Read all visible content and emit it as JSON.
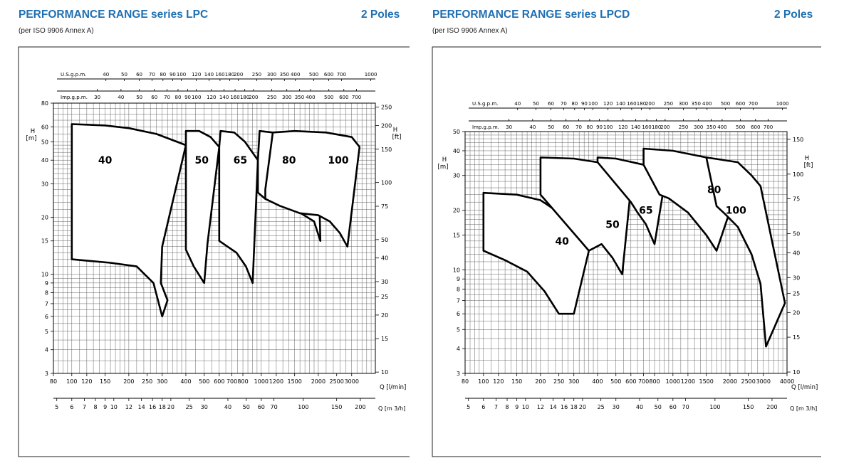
{
  "colors": {
    "title": "#1f6fb2",
    "frame": "#222222",
    "grid": "#555555",
    "curve": "#000000"
  },
  "chart_data": [
    {
      "type": "area",
      "title": "PERFORMANCE RANGE series LPC",
      "poles": "2 Poles",
      "note": "(per ISO 9906 Annex A)",
      "scale": "log-log",
      "xlim": [
        80,
        4000
      ],
      "ylim": [
        3,
        80
      ],
      "x_ticks": [
        "80",
        "100",
        "120",
        "150",
        "200",
        "250",
        "300",
        "400",
        "500",
        "600",
        "700",
        "800",
        "1000",
        "1200",
        "1500",
        "2000",
        "2500",
        "3000"
      ],
      "x_label": "Q [l/min]",
      "y_ticks": [
        "3",
        "4",
        "5",
        "6",
        "7",
        "8",
        "9",
        "10",
        "15",
        "20",
        "30",
        "40",
        "50",
        "60",
        "80"
      ],
      "y_label": "H\n[m]",
      "ft_ticks": [
        "10",
        "15",
        "20",
        "25",
        "30",
        "40",
        "50",
        "75",
        "100",
        "150",
        "200",
        "250"
      ],
      "ft_label": "H\n[ft]",
      "us_gpm_label": "U.S.g.p.m.",
      "us_gpm_ticks": [
        "40",
        "50",
        "60",
        "70",
        "80",
        "90",
        "100",
        "120",
        "140",
        "160",
        "180",
        "200",
        "250",
        "300",
        "350",
        "400",
        "500",
        "600",
        "700",
        "1000"
      ],
      "imp_gpm_label": "Imp.g.p.m.",
      "imp_gpm_ticks": [
        "30",
        "40",
        "50",
        "60",
        "70",
        "80",
        "90",
        "100",
        "120",
        "140",
        "160",
        "180",
        "200",
        "250",
        "300",
        "350",
        "400",
        "500",
        "600",
        "700"
      ],
      "m3h_label": "Q [m 3/h]",
      "m3h_ticks": [
        "5",
        "6",
        "7",
        "8",
        "9",
        "10",
        "12",
        "14",
        "16",
        "18",
        "20",
        "25",
        "30",
        "40",
        "50",
        "60",
        "70",
        "100",
        "150",
        "200"
      ],
      "series": [
        {
          "name": "40",
          "label_at": [
            150,
            40
          ],
          "points": [
            [
              100,
              12
            ],
            [
              100,
              62
            ],
            [
              150,
              61
            ],
            [
              200,
              59
            ],
            [
              280,
              55
            ],
            [
              400,
              48
            ],
            [
              300,
              14
            ],
            [
              295,
              9
            ],
            [
              320,
              7.3
            ],
            [
              300,
              6
            ],
            [
              270,
              9
            ],
            [
              220,
              11
            ],
            [
              160,
              11.5
            ],
            [
              100,
              12
            ]
          ]
        },
        {
          "name": "50",
          "label_at": [
            485,
            40
          ],
          "points": [
            [
              400,
              48
            ],
            [
              400,
              57
            ],
            [
              470,
              57
            ],
            [
              540,
              53
            ],
            [
              600,
              47
            ],
            [
              520,
              14.5
            ],
            [
              500,
              9
            ],
            [
              440,
              11
            ],
            [
              400,
              13.5
            ],
            [
              400,
              48
            ]
          ]
        },
        {
          "name": "65",
          "label_at": [
            775,
            40
          ],
          "points": [
            [
              600,
              47
            ],
            [
              610,
              57
            ],
            [
              720,
              56
            ],
            [
              820,
              50
            ],
            [
              960,
              40
            ],
            [
              900,
              9
            ],
            [
              830,
              11
            ],
            [
              740,
              13
            ],
            [
              600,
              15
            ],
            [
              600,
              47
            ]
          ]
        },
        {
          "name": "80",
          "label_at": [
            1400,
            40
          ],
          "points": [
            [
              960,
              40
            ],
            [
              980,
              57
            ],
            [
              1150,
              56
            ],
            [
              1400,
              53
            ],
            [
              1600,
              47
            ],
            [
              2000,
              40
            ],
            [
              2050,
              15
            ],
            [
              1900,
              19
            ],
            [
              1500,
              22
            ],
            [
              1200,
              23.5
            ],
            [
              1050,
              25
            ],
            [
              960,
              27
            ],
            [
              960,
              40
            ]
          ]
        },
        {
          "name": "100",
          "label_at": [
            2550,
            40
          ],
          "points": [
            [
              1150,
              56
            ],
            [
              1500,
              57
            ],
            [
              2200,
              56
            ],
            [
              3000,
              53
            ],
            [
              3300,
              47
            ],
            [
              2850,
              14
            ],
            [
              2600,
              16.5
            ],
            [
              2300,
              19
            ],
            [
              2000,
              20.5
            ],
            [
              1600,
              21
            ],
            [
              1250,
              23
            ],
            [
              1050,
              25
            ],
            [
              1050,
              28
            ]
          ]
        }
      ]
    },
    {
      "type": "area",
      "title": "PERFORMANCE RANGE series LPCD",
      "poles": "2 Poles",
      "note": "(per ISO 9906 Annex A)",
      "scale": "log-log",
      "xlim": [
        80,
        4000
      ],
      "ylim": [
        3,
        50
      ],
      "x_ticks": [
        "80",
        "100",
        "120",
        "150",
        "200",
        "250",
        "300",
        "400",
        "500",
        "600",
        "700",
        "800",
        "1000",
        "1200",
        "1500",
        "2000",
        "2500",
        "3000",
        "4000"
      ],
      "x_label": "Q [l/min]",
      "y_ticks": [
        "3",
        "4",
        "5",
        "6",
        "7",
        "8",
        "9",
        "10",
        "15",
        "20",
        "30",
        "40",
        "50"
      ],
      "y_label": "H\n[m]",
      "ft_ticks": [
        "10",
        "15",
        "20",
        "25",
        "30",
        "40",
        "50",
        "75",
        "100",
        "150"
      ],
      "ft_label": "H\n[ft]",
      "us_gpm_label": "U.S.g.p.m.",
      "us_gpm_ticks": [
        "40",
        "50",
        "60",
        "70",
        "80",
        "90",
        "100",
        "120",
        "140",
        "160",
        "180",
        "200",
        "250",
        "300",
        "350",
        "400",
        "500",
        "600",
        "700",
        "1000"
      ],
      "imp_gpm_label": "Imp.g.p.m.",
      "imp_gpm_ticks": [
        "30",
        "40",
        "50",
        "60",
        "70",
        "80",
        "90",
        "100",
        "120",
        "140",
        "160",
        "180",
        "200",
        "250",
        "300",
        "350",
        "400",
        "500",
        "600",
        "700"
      ],
      "m3h_label": "Q [m 3/h]",
      "m3h_ticks": [
        "5",
        "6",
        "7",
        "8",
        "9",
        "10",
        "12",
        "14",
        "16",
        "18",
        "20",
        "25",
        "30",
        "40",
        "50",
        "60",
        "70",
        "100",
        "150",
        "200"
      ],
      "series": [
        {
          "name": "40",
          "label_at": [
            260,
            14
          ],
          "points": [
            [
              100,
              12.5
            ],
            [
              100,
              24.5
            ],
            [
              150,
              24
            ],
            [
              200,
              22.5
            ],
            [
              260,
              19
            ],
            [
              310,
              15
            ],
            [
              360,
              12.5
            ],
            [
              300,
              6
            ],
            [
              250,
              6
            ],
            [
              210,
              7.8
            ],
            [
              170,
              9.8
            ],
            [
              130,
              11.2
            ],
            [
              100,
              12.5
            ]
          ]
        },
        {
          "name": "50",
          "label_at": [
            480,
            17
          ],
          "points": [
            [
              200,
              24
            ],
            [
              200,
              37
            ],
            [
              300,
              36.5
            ],
            [
              400,
              35
            ],
            [
              530,
              30
            ],
            [
              600,
              26
            ],
            [
              540,
              9.5
            ],
            [
              480,
              11.5
            ],
            [
              420,
              13.5
            ],
            [
              360,
              12.5
            ]
          ]
        },
        {
          "name": "65",
          "label_at": [
            720,
            20
          ],
          "points": [
            [
              400,
              35
            ],
            [
              400,
              37
            ],
            [
              500,
              36.5
            ],
            [
              700,
              34
            ],
            [
              850,
              30
            ],
            [
              900,
              27
            ],
            [
              800,
              13.5
            ],
            [
              720,
              17
            ],
            [
              650,
              19.5
            ],
            [
              600,
              22
            ]
          ]
        },
        {
          "name": "80",
          "label_at": [
            1650,
            25.5
          ],
          "points": [
            [
              700,
              34
            ],
            [
              700,
              41
            ],
            [
              1000,
              40
            ],
            [
              1500,
              37
            ],
            [
              2000,
              32
            ],
            [
              2200,
              26
            ],
            [
              1700,
              12.5
            ],
            [
              1500,
              15
            ],
            [
              1200,
              19.5
            ],
            [
              950,
              23
            ],
            [
              850,
              24
            ]
          ]
        },
        {
          "name": "100",
          "label_at": [
            2150,
            20
          ],
          "points": [
            [
              1500,
              37
            ],
            [
              2200,
              35
            ],
            [
              2600,
              30
            ],
            [
              2900,
              26.5
            ],
            [
              3900,
              6.8
            ],
            [
              3100,
              4.1
            ],
            [
              2900,
              8.5
            ],
            [
              2600,
              12
            ],
            [
              2200,
              16.5
            ],
            [
              1900,
              19
            ],
            [
              1700,
              21
            ]
          ]
        }
      ]
    }
  ]
}
